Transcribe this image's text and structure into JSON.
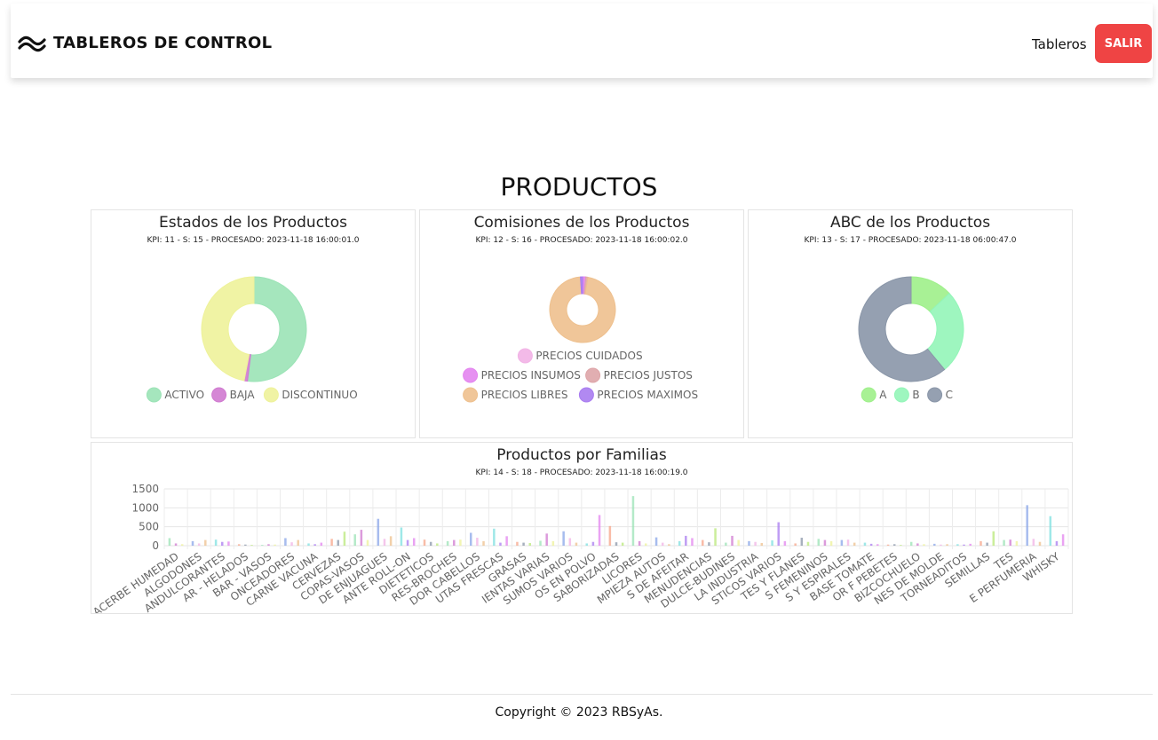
{
  "header": {
    "brand": "TABLEROS DE CONTROL",
    "nav_link": "Tableros",
    "exit_label": "SALIR"
  },
  "page": {
    "title": "PRODUCTOS"
  },
  "cards": {
    "estados": {
      "title": "Estados de los Productos",
      "subtitle": "KPI: 11 - S: 15 - PROCESADO: 2023-11-18 16:00:01.0"
    },
    "comisiones": {
      "title": "Comisiones de los Productos",
      "subtitle": "KPI: 12 - S: 16 - PROCESADO: 2023-11-18 16:00:02.0"
    },
    "abc": {
      "title": "ABC de los Productos",
      "subtitle": "KPI: 13 - S: 17 - PROCESADO: 2023-11-18 06:00:47.0"
    },
    "familias": {
      "title": "Productos por Familias",
      "subtitle": "KPI: 14 - S: 18 - PROCESADO: 2023-11-18 16:00:19.0"
    }
  },
  "footer": {
    "copyright": "Copyright © 2023 RBSyAs."
  },
  "colors": {
    "exit_button": "#ef4444"
  },
  "chart_data": [
    {
      "type": "pie",
      "id": "estados",
      "labels": [
        "ACTIVO",
        "BAJA",
        "DISCONTINUO"
      ],
      "values": [
        52,
        1,
        47
      ],
      "colors": [
        "#9be3b6",
        "#d07ad0",
        "#eef29a"
      ],
      "legend": "bottom"
    },
    {
      "type": "pie",
      "id": "comisiones",
      "labels": [
        "PRECIOS CUIDADOS",
        "PRECIOS INSUMOS",
        "PRECIOS JUSTOS",
        "PRECIOS LIBRES",
        "PRECIOS MAXIMOS"
      ],
      "values": [
        0.5,
        1,
        1,
        93,
        1
      ],
      "colors": [
        "#f2b3e6",
        "#e384ef",
        "#dea5a8",
        "#eec08e",
        "#a97cf0"
      ],
      "legend": "bottom"
    },
    {
      "type": "pie",
      "id": "abc",
      "labels": [
        "A",
        "B",
        "C"
      ],
      "values": [
        13,
        26,
        61
      ],
      "colors": [
        "#9ef08a",
        "#93f5b8",
        "#8a96a8"
      ],
      "legend": "bottom"
    },
    {
      "type": "bar",
      "id": "familias",
      "ylim": [
        0,
        1500
      ],
      "yticks": [
        0,
        500,
        1000,
        1500
      ],
      "grid": true,
      "categories": [
        "ACERBE HUMEDAD",
        "ALGODONES",
        "ANDULCORANTES",
        "AR - HELADOS",
        "BAR - VASOS",
        "ONCEADORES",
        "CARNE VACUNA",
        "CERVEZAS",
        "COPAS-VASOS",
        "DE ENJUAGUES",
        "ANTE ROLL-ON",
        "DIETETICOS",
        "RES-BROCHES",
        "DOR CABELLOS",
        "UTAS FRESCAS",
        "GRASAS",
        "IENTAS VARIAS",
        "SUMOS VARIOS",
        "OS EN POLVO",
        "SABORIZADAS",
        "LICORES",
        "MPIEZA AUTOS",
        "S DE AFEITAR",
        "MENUDENCIAS",
        "DULCE-BUDINES",
        "LA INDUSTRIA",
        "STICOS VARIOS",
        "TES Y FLANES",
        "S FEMENINOS",
        "S Y ESPIRALES",
        "BASE TOMATE",
        "OR F PEBETES",
        "BIZCOCHUELO",
        "NES DE MOLDE",
        "TORNEADITOS",
        "SEMILLAS",
        "TES",
        "E PERFUMERIA",
        "WHISKY"
      ],
      "values": [
        [
          200,
          60,
          40
        ],
        [
          120,
          60,
          150
        ],
        [
          160,
          100,
          110
        ],
        [
          40,
          30,
          20
        ],
        [
          20,
          40,
          30
        ],
        [
          200,
          90,
          150
        ],
        [
          60,
          40,
          80
        ],
        [
          180,
          150,
          370
        ],
        [
          300,
          420,
          150
        ],
        [
          710,
          180,
          250
        ],
        [
          480,
          150,
          200
        ],
        [
          160,
          100,
          60
        ],
        [
          120,
          150,
          160
        ],
        [
          340,
          210,
          120
        ],
        [
          450,
          80,
          250
        ],
        [
          100,
          80,
          70
        ],
        [
          130,
          320,
          120
        ],
        [
          380,
          200,
          80
        ],
        [
          60,
          100,
          810
        ],
        [
          520,
          90,
          80
        ],
        [
          1310,
          120,
          60
        ],
        [
          220,
          80,
          40
        ],
        [
          120,
          260,
          200
        ],
        [
          150,
          90,
          460
        ],
        [
          80,
          260,
          150
        ],
        [
          120,
          100,
          70
        ],
        [
          140,
          620,
          120
        ],
        [
          60,
          210,
          100
        ],
        [
          180,
          150,
          120
        ],
        [
          150,
          160,
          80
        ],
        [
          80,
          50,
          40
        ],
        [
          30,
          40,
          20
        ],
        [
          100,
          60,
          40
        ],
        [
          50,
          30,
          40
        ],
        [
          40,
          30,
          50
        ],
        [
          120,
          80,
          380
        ],
        [
          150,
          160,
          120
        ],
        [
          1070,
          180,
          100
        ],
        [
          780,
          120,
          300
        ]
      ],
      "colors": [
        "#9be3b6",
        "#d07ad0",
        "#eef29a",
        "#8aa6e8",
        "#f2b3e6",
        "#eec08e",
        "#7fe0e0",
        "#a97cf0",
        "#e384ef",
        "#f7a58a",
        "#8a96a8",
        "#b9e87a"
      ],
      "legend": "none"
    }
  ]
}
